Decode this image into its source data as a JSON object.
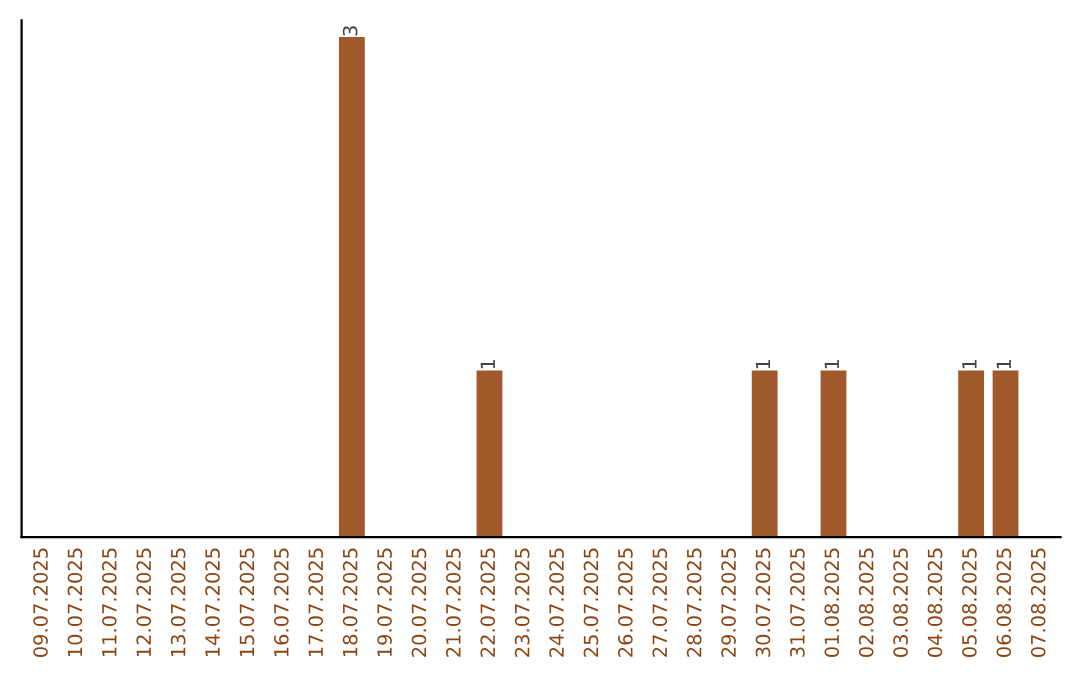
{
  "chart_data": {
    "type": "bar",
    "categories": [
      "09.07.2025",
      "10.07.2025",
      "11.07.2025",
      "12.07.2025",
      "13.07.2025",
      "14.07.2025",
      "15.07.2025",
      "16.07.2025",
      "17.07.2025",
      "18.07.2025",
      "19.07.2025",
      "20.07.2025",
      "21.07.2025",
      "22.07.2025",
      "23.07.2025",
      "24.07.2025",
      "25.07.2025",
      "26.07.2025",
      "27.07.2025",
      "28.07.2025",
      "29.07.2025",
      "30.07.2025",
      "31.07.2025",
      "01.08.2025",
      "02.08.2025",
      "03.08.2025",
      "04.08.2025",
      "05.08.2025",
      "06.08.2025",
      "07.08.2025"
    ],
    "values": [
      0,
      0,
      0,
      0,
      0,
      0,
      0,
      0,
      0,
      3,
      0,
      0,
      0,
      1,
      0,
      0,
      0,
      0,
      0,
      0,
      0,
      1,
      0,
      1,
      0,
      0,
      0,
      1,
      1,
      0
    ],
    "value_labels": [
      null,
      null,
      null,
      null,
      null,
      null,
      null,
      null,
      null,
      "3",
      null,
      null,
      null,
      "1",
      null,
      null,
      null,
      null,
      null,
      null,
      null,
      "1",
      null,
      "1",
      null,
      null,
      null,
      "1",
      "1",
      null
    ],
    "color": "#a0592a",
    "ylim": [
      0,
      3.1
    ],
    "tick_labels": "x",
    "grid": false,
    "legend": false
  }
}
